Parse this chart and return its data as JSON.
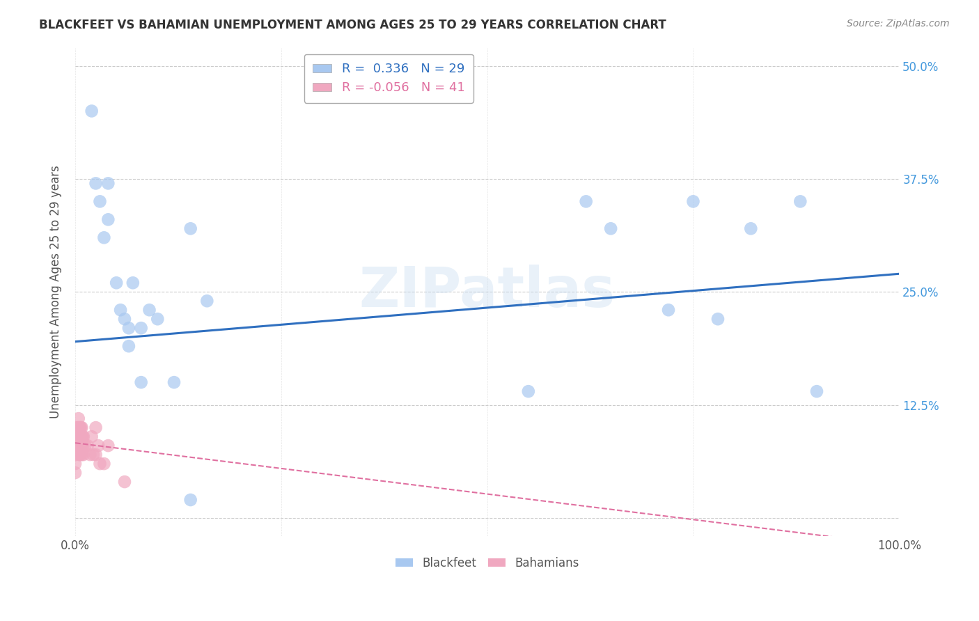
{
  "title": "BLACKFEET VS BAHAMIAN UNEMPLOYMENT AMONG AGES 25 TO 29 YEARS CORRELATION CHART",
  "source": "Source: ZipAtlas.com",
  "ylabel": "Unemployment Among Ages 25 to 29 years",
  "xlim": [
    0,
    1.0
  ],
  "ylim": [
    -0.02,
    0.52
  ],
  "xticks": [
    0.0,
    0.25,
    0.5,
    0.75,
    1.0
  ],
  "xticklabels": [
    "0.0%",
    "",
    "",
    "",
    "100.0%"
  ],
  "ytick_positions": [
    0.0,
    0.125,
    0.25,
    0.375,
    0.5
  ],
  "yticklabels_right": [
    "",
    "12.5%",
    "25.0%",
    "37.5%",
    "50.0%"
  ],
  "blackfeet_r": 0.336,
  "blackfeet_n": 29,
  "bahamian_r": -0.056,
  "bahamian_n": 41,
  "blackfeet_color": "#a8c8f0",
  "bahamian_color": "#f0a8c0",
  "trendline_blue": "#3070c0",
  "trendline_pink": "#e070a0",
  "background": "#ffffff",
  "grid_color": "#cccccc",
  "watermark": "ZIPatlas",
  "blackfeet_x": [
    0.02,
    0.025,
    0.03,
    0.035,
    0.04,
    0.04,
    0.05,
    0.055,
    0.06,
    0.065,
    0.065,
    0.07,
    0.08,
    0.08,
    0.09,
    0.1,
    0.12,
    0.14,
    0.16,
    0.55,
    0.62,
    0.65,
    0.72,
    0.75,
    0.78,
    0.82,
    0.88,
    0.9,
    0.14
  ],
  "blackfeet_y": [
    0.45,
    0.37,
    0.35,
    0.31,
    0.37,
    0.33,
    0.26,
    0.23,
    0.22,
    0.21,
    0.19,
    0.26,
    0.15,
    0.21,
    0.23,
    0.22,
    0.15,
    0.32,
    0.24,
    0.14,
    0.35,
    0.32,
    0.23,
    0.35,
    0.22,
    0.32,
    0.35,
    0.14,
    0.02
  ],
  "bahamian_x": [
    0.0,
    0.0,
    0.0,
    0.0,
    0.0,
    0.002,
    0.002,
    0.003,
    0.003,
    0.004,
    0.004,
    0.004,
    0.005,
    0.005,
    0.005,
    0.005,
    0.006,
    0.006,
    0.006,
    0.007,
    0.007,
    0.007,
    0.008,
    0.008,
    0.008,
    0.009,
    0.009,
    0.01,
    0.01,
    0.012,
    0.015,
    0.018,
    0.02,
    0.022,
    0.025,
    0.025,
    0.028,
    0.03,
    0.035,
    0.04,
    0.06
  ],
  "bahamian_y": [
    0.09,
    0.08,
    0.07,
    0.06,
    0.05,
    0.1,
    0.09,
    0.1,
    0.08,
    0.11,
    0.1,
    0.08,
    0.1,
    0.09,
    0.08,
    0.07,
    0.1,
    0.09,
    0.07,
    0.1,
    0.09,
    0.08,
    0.1,
    0.09,
    0.07,
    0.09,
    0.08,
    0.09,
    0.07,
    0.08,
    0.08,
    0.07,
    0.09,
    0.07,
    0.1,
    0.07,
    0.08,
    0.06,
    0.06,
    0.08,
    0.04
  ],
  "blue_trendline_x0": 0.0,
  "blue_trendline_y0": 0.195,
  "blue_trendline_x1": 1.0,
  "blue_trendline_y1": 0.27,
  "pink_trendline_x0": 0.0,
  "pink_trendline_y0": 0.083,
  "pink_trendline_x1": 1.0,
  "pink_trendline_y1": -0.03
}
